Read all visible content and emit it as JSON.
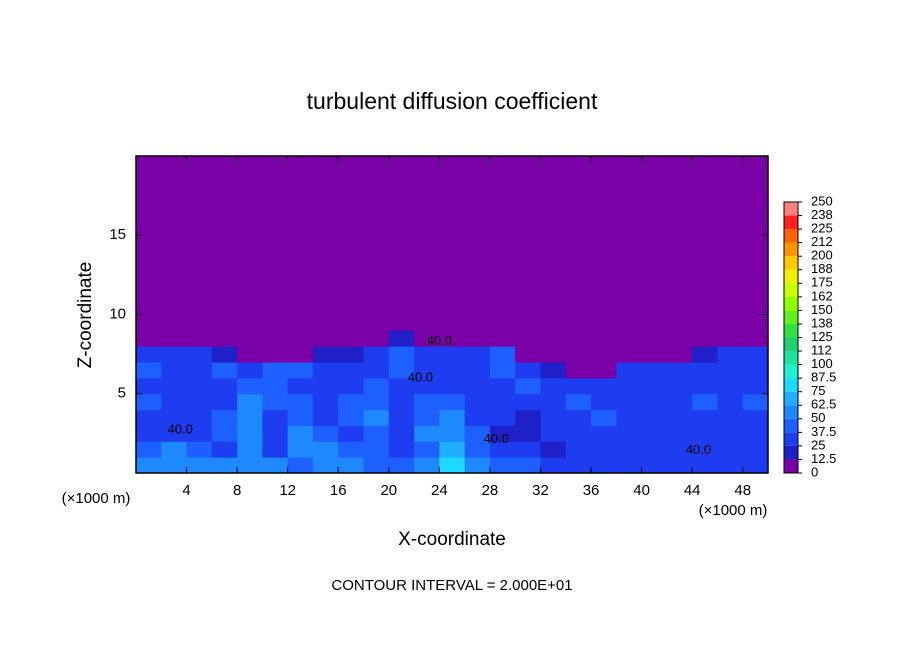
{
  "chart_data": {
    "type": "heatmap",
    "title": "turbulent diffusion coefficient",
    "x_label": "X-coordinate",
    "y_label": "Z-coordinate",
    "x_unit": "(×1000 m)",
    "y_unit": "(×1000 m)",
    "footer": "CONTOUR INTERVAL = 2.000E+01",
    "contour_labels": [
      "40.0",
      "40.0",
      "40.0",
      "40.0",
      "40.0"
    ],
    "xlim": [
      0,
      50
    ],
    "ylim": [
      0,
      20
    ],
    "xticks": [
      4,
      8,
      12,
      16,
      20,
      24,
      28,
      32,
      36,
      40,
      44,
      48
    ],
    "yticks": [
      5,
      10,
      15
    ],
    "x": [
      1,
      3,
      5,
      7,
      9,
      11,
      13,
      15,
      17,
      19,
      21,
      23,
      25,
      27,
      29,
      31,
      33,
      35,
      37,
      39,
      41,
      43,
      45,
      47,
      49
    ],
    "y": [
      0.5,
      1.5,
      2.5,
      3.5,
      4.5,
      5.5,
      6.5,
      7.5,
      8.5,
      9.5,
      10.5,
      11.5,
      12.5,
      13.5,
      14.5,
      15.5,
      16.5,
      17.5,
      18.5,
      19.5
    ],
    "values": [
      [
        60,
        55,
        50,
        55,
        50,
        55,
        45,
        60,
        50,
        45,
        40,
        50,
        80,
        55,
        40,
        45,
        35,
        30,
        30,
        30,
        35,
        35,
        30,
        35,
        30
      ],
      [
        45,
        50,
        40,
        35,
        60,
        35,
        50,
        55,
        45,
        40,
        30,
        45,
        65,
        40,
        25,
        25,
        20,
        25,
        30,
        30,
        25,
        30,
        35,
        30,
        30
      ],
      [
        30,
        35,
        30,
        40,
        60,
        30,
        55,
        45,
        35,
        45,
        35,
        50,
        55,
        40,
        20,
        20,
        25,
        35,
        35,
        30,
        30,
        25,
        30,
        35,
        30
      ],
      [
        35,
        30,
        30,
        40,
        55,
        35,
        45,
        30,
        40,
        50,
        30,
        45,
        50,
        35,
        25,
        20,
        30,
        35,
        40,
        35,
        30,
        30,
        35,
        30,
        35
      ],
      [
        40,
        30,
        25,
        30,
        50,
        40,
        40,
        35,
        40,
        45,
        30,
        40,
        40,
        30,
        30,
        25,
        35,
        40,
        35,
        30,
        35,
        35,
        40,
        30,
        40
      ],
      [
        35,
        25,
        30,
        35,
        45,
        45,
        35,
        30,
        35,
        40,
        35,
        35,
        35,
        30,
        30,
        40,
        25,
        30,
        30,
        35,
        30,
        30,
        35,
        30,
        35
      ],
      [
        40,
        30,
        35,
        40,
        30,
        45,
        45,
        30,
        30,
        35,
        40,
        30,
        35,
        30,
        40,
        35,
        20,
        5,
        10,
        25,
        30,
        25,
        35,
        30,
        30
      ],
      [
        30,
        35,
        25,
        20,
        10,
        5,
        10,
        20,
        15,
        30,
        40,
        35,
        35,
        25,
        40,
        10,
        5,
        0,
        0,
        0,
        10,
        5,
        20,
        30,
        30
      ],
      [
        10,
        5,
        0,
        0,
        0,
        0,
        0,
        0,
        0,
        5,
        15,
        10,
        10,
        5,
        5,
        0,
        0,
        0,
        0,
        0,
        0,
        0,
        0,
        5,
        5
      ],
      [
        0,
        0,
        0,
        0,
        0,
        0,
        0,
        0,
        0,
        0,
        0,
        0,
        0,
        0,
        0,
        0,
        0,
        0,
        0,
        0,
        0,
        0,
        0,
        0,
        0
      ],
      [
        0,
        0,
        0,
        0,
        0,
        0,
        0,
        0,
        0,
        0,
        0,
        0,
        0,
        0,
        0,
        0,
        0,
        0,
        0,
        0,
        0,
        0,
        0,
        0,
        0
      ],
      [
        0,
        0,
        0,
        0,
        0,
        0,
        0,
        0,
        0,
        0,
        0,
        0,
        0,
        0,
        0,
        0,
        0,
        0,
        0,
        0,
        0,
        0,
        0,
        0,
        0
      ],
      [
        0,
        0,
        0,
        0,
        0,
        0,
        0,
        0,
        0,
        0,
        0,
        0,
        0,
        0,
        0,
        0,
        0,
        0,
        0,
        0,
        0,
        0,
        0,
        0,
        0
      ],
      [
        0,
        0,
        0,
        0,
        0,
        0,
        0,
        0,
        0,
        0,
        0,
        0,
        0,
        0,
        0,
        0,
        0,
        0,
        0,
        0,
        0,
        0,
        0,
        0,
        0
      ],
      [
        0,
        0,
        0,
        0,
        0,
        0,
        0,
        0,
        0,
        0,
        0,
        0,
        0,
        0,
        0,
        0,
        0,
        0,
        0,
        0,
        0,
        0,
        0,
        0,
        0
      ],
      [
        0,
        0,
        0,
        0,
        0,
        0,
        0,
        0,
        0,
        0,
        0,
        0,
        0,
        0,
        0,
        0,
        0,
        0,
        0,
        0,
        0,
        0,
        0,
        0,
        0
      ],
      [
        0,
        0,
        0,
        0,
        0,
        0,
        0,
        0,
        0,
        0,
        0,
        0,
        0,
        0,
        0,
        0,
        0,
        0,
        0,
        0,
        0,
        0,
        0,
        0,
        0
      ],
      [
        0,
        0,
        0,
        0,
        0,
        0,
        0,
        0,
        0,
        0,
        0,
        0,
        0,
        0,
        0,
        0,
        0,
        0,
        0,
        0,
        0,
        0,
        0,
        0,
        0
      ],
      [
        0,
        0,
        0,
        0,
        0,
        0,
        0,
        0,
        0,
        0,
        0,
        0,
        0,
        0,
        0,
        0,
        0,
        0,
        0,
        0,
        0,
        0,
        0,
        0,
        0
      ],
      [
        0,
        0,
        0,
        0,
        0,
        0,
        0,
        0,
        0,
        0,
        0,
        0,
        0,
        0,
        0,
        0,
        0,
        0,
        0,
        0,
        0,
        0,
        0,
        0,
        0
      ]
    ],
    "colorbar": {
      "levels": [
        0,
        12.5,
        25,
        37.5,
        50,
        62.5,
        75,
        87.5,
        100,
        {
          "value": 112.5,
          "label": "112"
        },
        125,
        {
          "value": 137.5,
          "label": "138"
        },
        150,
        {
          "value": 162.5,
          "label": "162"
        },
        175,
        {
          "value": 187.5,
          "label": "188"
        },
        200,
        {
          "value": 212.5,
          "label": "212"
        },
        225,
        {
          "value": 237.5,
          "label": "238"
        },
        250
      ],
      "colors": [
        "#7a00a8",
        "#2020c8",
        "#1e3cf0",
        "#1e60ff",
        "#1e88ff",
        "#1eb0ff",
        "#1ed8ff",
        "#20f0d0",
        "#20e0a0",
        "#20d070",
        "#30e040",
        "#60f020",
        "#90ff00",
        "#c8ff00",
        "#f0f000",
        "#ffc800",
        "#ff9600",
        "#ff6000",
        "#ff2020",
        "#ff8080"
      ]
    }
  }
}
